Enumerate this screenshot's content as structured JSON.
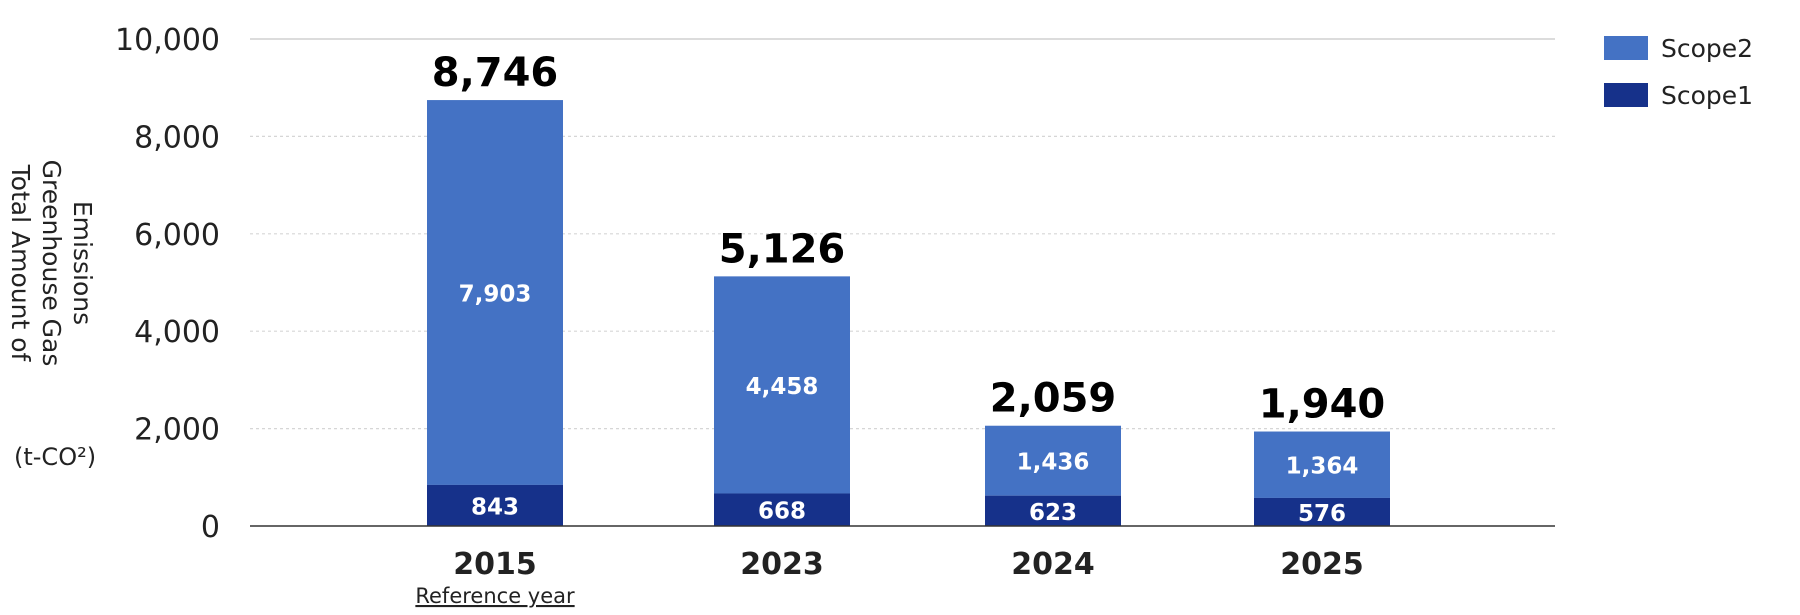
{
  "chart_data": {
    "type": "bar",
    "stacked": true,
    "categories": [
      "2015",
      "2023",
      "2024",
      "2025"
    ],
    "category_notes": [
      "Reference year",
      "",
      "",
      ""
    ],
    "series": [
      {
        "name": "Scope1",
        "values": [
          843,
          668,
          623,
          576
        ],
        "color": "#16318a"
      },
      {
        "name": "Scope2",
        "values": [
          7903,
          4458,
          1436,
          1364
        ],
        "color": "#4472c4"
      }
    ],
    "totals": [
      8746,
      5126,
      2059,
      1940
    ],
    "total_labels": [
      "8,746",
      "5,126",
      "2,059",
      "1,940"
    ],
    "segment_labels": {
      "Scope1": [
        "843",
        "668",
        "623",
        "576"
      ],
      "Scope2": [
        "7,903",
        "4,458",
        "1,436",
        "1,364"
      ]
    },
    "yticks": [
      0,
      2000,
      4000,
      6000,
      8000,
      10000
    ],
    "ytick_labels": [
      "0",
      "2,000",
      "4,000",
      "6,000",
      "8,000",
      "10,000"
    ],
    "ylim": [
      0,
      10000
    ],
    "ylabel_lines": [
      "Total Amount of",
      "Greenhouse Gas",
      "Emissions"
    ],
    "unit": "(t-CO²)",
    "grid": true,
    "legend_position": "top-right",
    "legend_order": [
      "Scope2",
      "Scope1"
    ]
  }
}
